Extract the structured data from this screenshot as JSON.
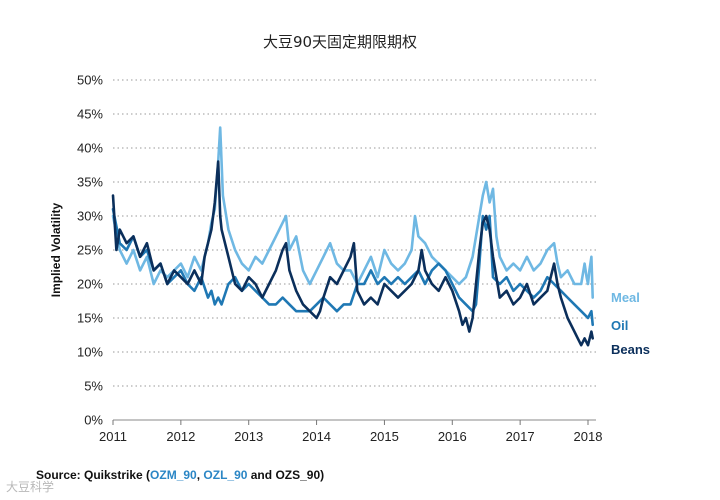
{
  "chart_data": {
    "type": "line",
    "title": "大豆90天固定期限期权",
    "xlabel": "",
    "ylabel": "Implied Volatility",
    "ylim": [
      0,
      50
    ],
    "xlim": [
      2011,
      2018.05
    ],
    "yticks": [
      "0%",
      "5%",
      "10%",
      "15%",
      "20%",
      "25%",
      "30%",
      "35%",
      "40%",
      "45%",
      "50%"
    ],
    "xticks": [
      "2011",
      "2012",
      "2013",
      "2014",
      "2015",
      "2016",
      "2017",
      "2018"
    ],
    "grid": "horizontal dotted",
    "legend": "right, labels at series end",
    "series": [
      {
        "name": "Meal",
        "color": "#6fb8e3",
        "points": [
          [
            2011.0,
            30
          ],
          [
            2011.1,
            25
          ],
          [
            2011.2,
            23
          ],
          [
            2011.3,
            25
          ],
          [
            2011.4,
            22
          ],
          [
            2011.5,
            24
          ],
          [
            2011.6,
            20
          ],
          [
            2011.7,
            22
          ],
          [
            2011.8,
            21
          ],
          [
            2011.9,
            22
          ],
          [
            2012.0,
            23
          ],
          [
            2012.1,
            21
          ],
          [
            2012.2,
            24
          ],
          [
            2012.3,
            22
          ],
          [
            2012.4,
            26
          ],
          [
            2012.45,
            29
          ],
          [
            2012.5,
            31
          ],
          [
            2012.55,
            38
          ],
          [
            2012.58,
            43
          ],
          [
            2012.62,
            33
          ],
          [
            2012.7,
            28
          ],
          [
            2012.8,
            25
          ],
          [
            2012.9,
            23
          ],
          [
            2013.0,
            22
          ],
          [
            2013.1,
            24
          ],
          [
            2013.2,
            23
          ],
          [
            2013.3,
            25
          ],
          [
            2013.4,
            27
          ],
          [
            2013.5,
            29
          ],
          [
            2013.55,
            30
          ],
          [
            2013.6,
            25
          ],
          [
            2013.7,
            27
          ],
          [
            2013.8,
            22
          ],
          [
            2013.9,
            20
          ],
          [
            2014.0,
            22
          ],
          [
            2014.1,
            24
          ],
          [
            2014.2,
            26
          ],
          [
            2014.3,
            23
          ],
          [
            2014.4,
            22
          ],
          [
            2014.5,
            22
          ],
          [
            2014.6,
            20
          ],
          [
            2014.7,
            22
          ],
          [
            2014.8,
            24
          ],
          [
            2014.9,
            21
          ],
          [
            2015.0,
            25
          ],
          [
            2015.1,
            23
          ],
          [
            2015.2,
            22
          ],
          [
            2015.3,
            23
          ],
          [
            2015.4,
            25
          ],
          [
            2015.45,
            30
          ],
          [
            2015.5,
            27
          ],
          [
            2015.6,
            26
          ],
          [
            2015.7,
            24
          ],
          [
            2015.8,
            23
          ],
          [
            2015.9,
            22
          ],
          [
            2016.0,
            21
          ],
          [
            2016.1,
            20
          ],
          [
            2016.2,
            21
          ],
          [
            2016.3,
            24
          ],
          [
            2016.4,
            30
          ],
          [
            2016.45,
            33
          ],
          [
            2016.5,
            35
          ],
          [
            2016.55,
            32
          ],
          [
            2016.6,
            34
          ],
          [
            2016.65,
            27
          ],
          [
            2016.7,
            24
          ],
          [
            2016.8,
            22
          ],
          [
            2016.9,
            23
          ],
          [
            2017.0,
            22
          ],
          [
            2017.1,
            24
          ],
          [
            2017.2,
            22
          ],
          [
            2017.3,
            23
          ],
          [
            2017.4,
            25
          ],
          [
            2017.5,
            26
          ],
          [
            2017.55,
            23
          ],
          [
            2017.6,
            21
          ],
          [
            2017.7,
            22
          ],
          [
            2017.8,
            20
          ],
          [
            2017.9,
            20
          ],
          [
            2017.95,
            23
          ],
          [
            2017.98,
            21
          ],
          [
            2018.0,
            20
          ],
          [
            2018.02,
            22
          ],
          [
            2018.05,
            24
          ],
          [
            2018.07,
            18
          ]
        ]
      },
      {
        "name": "Oil",
        "color": "#1f78b4",
        "points": [
          [
            2011.0,
            31
          ],
          [
            2011.1,
            26
          ],
          [
            2011.2,
            25
          ],
          [
            2011.3,
            27
          ],
          [
            2011.4,
            24
          ],
          [
            2011.5,
            25
          ],
          [
            2011.6,
            22
          ],
          [
            2011.7,
            23
          ],
          [
            2011.8,
            20
          ],
          [
            2011.9,
            21
          ],
          [
            2012.0,
            22
          ],
          [
            2012.1,
            20
          ],
          [
            2012.2,
            19
          ],
          [
            2012.3,
            21
          ],
          [
            2012.4,
            18
          ],
          [
            2012.45,
            19
          ],
          [
            2012.5,
            17
          ],
          [
            2012.55,
            18
          ],
          [
            2012.6,
            17
          ],
          [
            2012.7,
            20
          ],
          [
            2012.8,
            21
          ],
          [
            2012.9,
            19
          ],
          [
            2013.0,
            20
          ],
          [
            2013.1,
            19
          ],
          [
            2013.2,
            18
          ],
          [
            2013.3,
            17
          ],
          [
            2013.4,
            17
          ],
          [
            2013.5,
            18
          ],
          [
            2013.6,
            17
          ],
          [
            2013.7,
            16
          ],
          [
            2013.8,
            16
          ],
          [
            2013.9,
            16
          ],
          [
            2014.0,
            17
          ],
          [
            2014.1,
            18
          ],
          [
            2014.2,
            17
          ],
          [
            2014.3,
            16
          ],
          [
            2014.4,
            17
          ],
          [
            2014.5,
            17
          ],
          [
            2014.6,
            20
          ],
          [
            2014.7,
            20
          ],
          [
            2014.8,
            22
          ],
          [
            2014.9,
            20
          ],
          [
            2015.0,
            21
          ],
          [
            2015.1,
            20
          ],
          [
            2015.2,
            21
          ],
          [
            2015.3,
            20
          ],
          [
            2015.4,
            21
          ],
          [
            2015.5,
            22
          ],
          [
            2015.6,
            20
          ],
          [
            2015.7,
            22
          ],
          [
            2015.8,
            23
          ],
          [
            2015.9,
            22
          ],
          [
            2016.0,
            20
          ],
          [
            2016.1,
            18
          ],
          [
            2016.2,
            17
          ],
          [
            2016.3,
            16
          ],
          [
            2016.35,
            17
          ],
          [
            2016.4,
            23
          ],
          [
            2016.45,
            30
          ],
          [
            2016.5,
            28
          ],
          [
            2016.55,
            30
          ],
          [
            2016.6,
            21
          ],
          [
            2016.7,
            20
          ],
          [
            2016.8,
            21
          ],
          [
            2016.9,
            19
          ],
          [
            2017.0,
            20
          ],
          [
            2017.1,
            19
          ],
          [
            2017.2,
            18
          ],
          [
            2017.3,
            19
          ],
          [
            2017.4,
            21
          ],
          [
            2017.5,
            20
          ],
          [
            2017.6,
            19
          ],
          [
            2017.7,
            18
          ],
          [
            2017.8,
            17
          ],
          [
            2017.9,
            16
          ],
          [
            2018.0,
            15
          ],
          [
            2018.05,
            16
          ],
          [
            2018.07,
            14
          ]
        ]
      },
      {
        "name": "Beans",
        "color": "#0b2f5b",
        "points": [
          [
            2011.0,
            33
          ],
          [
            2011.05,
            25
          ],
          [
            2011.1,
            28
          ],
          [
            2011.2,
            26
          ],
          [
            2011.3,
            27
          ],
          [
            2011.4,
            24
          ],
          [
            2011.5,
            26
          ],
          [
            2011.6,
            22
          ],
          [
            2011.7,
            23
          ],
          [
            2011.8,
            20
          ],
          [
            2011.9,
            22
          ],
          [
            2012.0,
            21
          ],
          [
            2012.1,
            20
          ],
          [
            2012.2,
            22
          ],
          [
            2012.3,
            20
          ],
          [
            2012.35,
            24
          ],
          [
            2012.4,
            26
          ],
          [
            2012.45,
            28
          ],
          [
            2012.5,
            32
          ],
          [
            2012.55,
            38
          ],
          [
            2012.58,
            30
          ],
          [
            2012.6,
            28
          ],
          [
            2012.7,
            24
          ],
          [
            2012.8,
            20
          ],
          [
            2012.9,
            19
          ],
          [
            2013.0,
            21
          ],
          [
            2013.1,
            20
          ],
          [
            2013.2,
            18
          ],
          [
            2013.3,
            20
          ],
          [
            2013.4,
            22
          ],
          [
            2013.5,
            25
          ],
          [
            2013.55,
            26
          ],
          [
            2013.6,
            22
          ],
          [
            2013.7,
            19
          ],
          [
            2013.8,
            17
          ],
          [
            2013.9,
            16
          ],
          [
            2014.0,
            15
          ],
          [
            2014.05,
            16
          ],
          [
            2014.1,
            18
          ],
          [
            2014.2,
            21
          ],
          [
            2014.3,
            20
          ],
          [
            2014.4,
            22
          ],
          [
            2014.5,
            24
          ],
          [
            2014.55,
            26
          ],
          [
            2014.6,
            19
          ],
          [
            2014.7,
            17
          ],
          [
            2014.8,
            18
          ],
          [
            2014.9,
            17
          ],
          [
            2015.0,
            20
          ],
          [
            2015.1,
            19
          ],
          [
            2015.2,
            18
          ],
          [
            2015.3,
            19
          ],
          [
            2015.4,
            20
          ],
          [
            2015.5,
            22
          ],
          [
            2015.55,
            25
          ],
          [
            2015.6,
            22
          ],
          [
            2015.7,
            20
          ],
          [
            2015.8,
            19
          ],
          [
            2015.9,
            21
          ],
          [
            2016.0,
            19
          ],
          [
            2016.1,
            16
          ],
          [
            2016.15,
            14
          ],
          [
            2016.2,
            15
          ],
          [
            2016.25,
            13
          ],
          [
            2016.3,
            15
          ],
          [
            2016.35,
            20
          ],
          [
            2016.4,
            25
          ],
          [
            2016.45,
            29
          ],
          [
            2016.5,
            30
          ],
          [
            2016.55,
            28
          ],
          [
            2016.6,
            24
          ],
          [
            2016.65,
            21
          ],
          [
            2016.7,
            18
          ],
          [
            2016.8,
            19
          ],
          [
            2016.9,
            17
          ],
          [
            2017.0,
            18
          ],
          [
            2017.1,
            20
          ],
          [
            2017.2,
            17
          ],
          [
            2017.3,
            18
          ],
          [
            2017.4,
            19
          ],
          [
            2017.5,
            23
          ],
          [
            2017.55,
            20
          ],
          [
            2017.6,
            18
          ],
          [
            2017.7,
            15
          ],
          [
            2017.8,
            13
          ],
          [
            2017.85,
            12
          ],
          [
            2017.9,
            11
          ],
          [
            2017.95,
            12
          ],
          [
            2018.0,
            11
          ],
          [
            2018.05,
            13
          ],
          [
            2018.07,
            12
          ]
        ]
      }
    ]
  },
  "source": {
    "prefix": "Source: Quikstrike (",
    "code1": "OZM_90",
    "sep1": ", ",
    "code2": "OZL_90",
    "sep2": " and ",
    "code3": "OZS_90",
    "suffix": ")"
  },
  "watermark": "大豆科学"
}
